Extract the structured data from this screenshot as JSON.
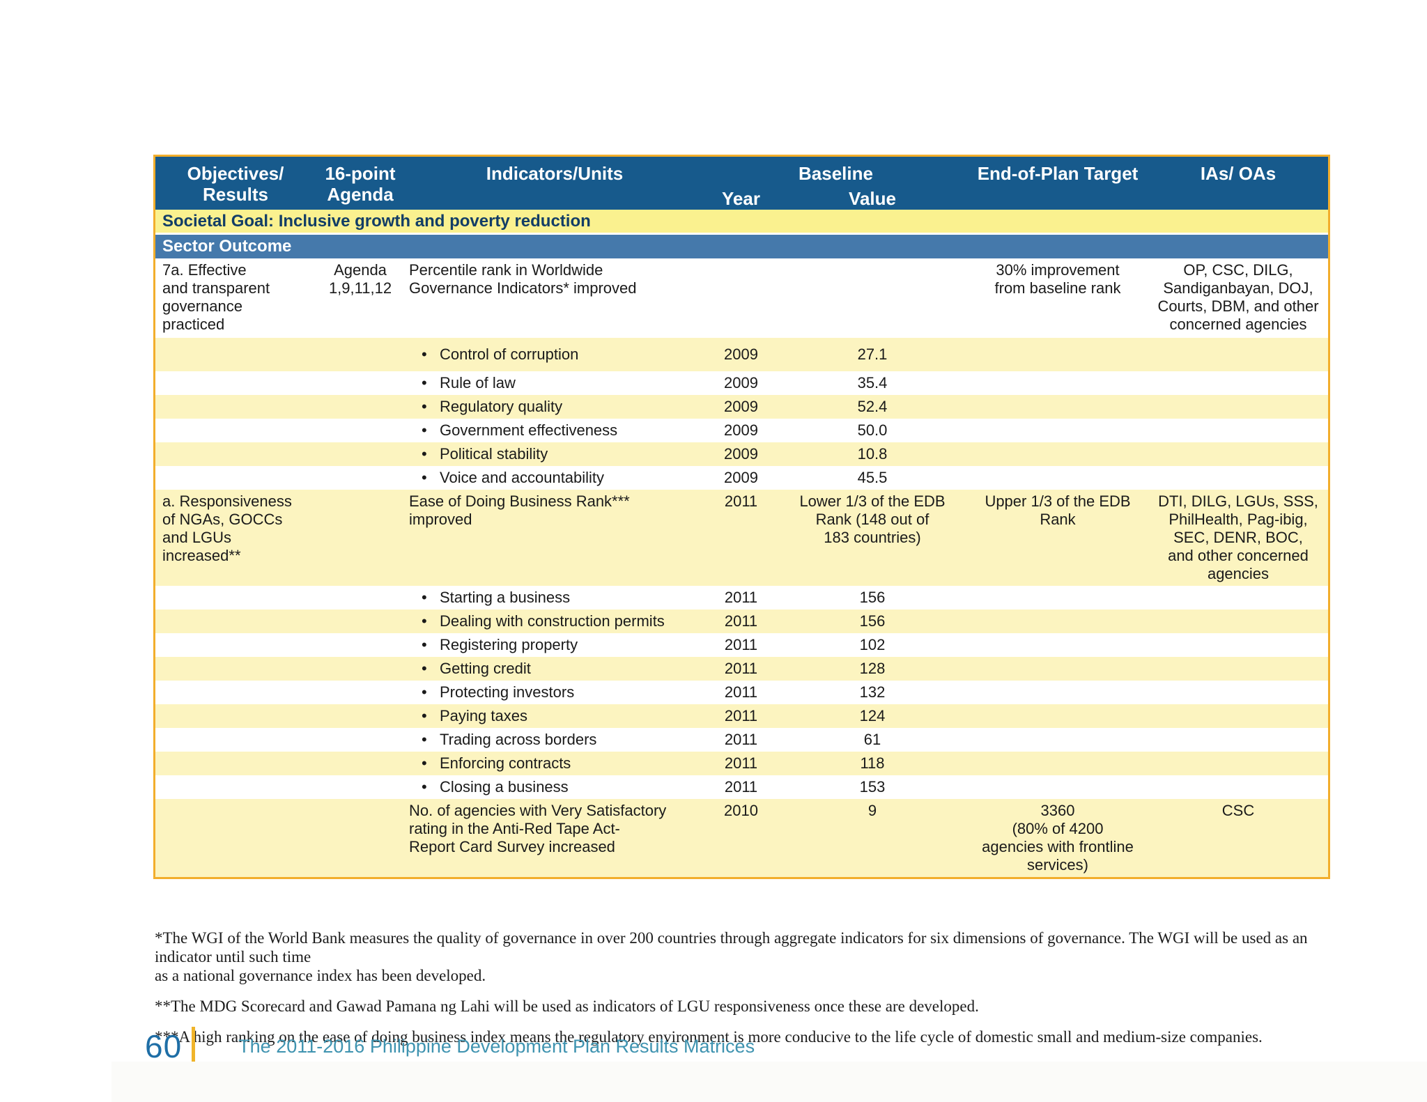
{
  "colors": {
    "header_blue": "#175a8c",
    "societal_band_yellow": "#faf18f",
    "societal_text_navy": "#123d66",
    "sector_band_blue": "#4579ab",
    "row_yellow": "#fcf4c0",
    "table_border_gold": "#f2ae2c",
    "footer_page_number_blue": "#1e6ea6",
    "footer_bar_gold": "#f0b42a",
    "footer_title_blue": "#3f93b0",
    "body_text": "#1a1a1a"
  },
  "table": {
    "headers": {
      "objectives": "Objectives/\nResults",
      "agenda": "16-point\nAgenda",
      "indicators": "Indicators/Units",
      "baseline": "Baseline",
      "year": "Year",
      "value": "Value",
      "target": "End-of-Plan Target",
      "ias": "IAs/ OAs"
    },
    "societal_goal": "Societal Goal: Inclusive growth and poverty reduction",
    "sector_outcome": "Sector Outcome",
    "rows": [
      {
        "obj": "7a. Effective\nand transparent\ngovernance\npracticed",
        "agenda": "Agenda\n1,9,11,12",
        "ind": "Percentile rank in Worldwide\nGovernance Indicators* improved",
        "year": "",
        "val": "",
        "target": "30% improvement\nfrom baseline rank",
        "ias": "OP, CSC, DILG,\nSandiganbayan, DOJ,\nCourts, DBM, and other\nconcerned agencies"
      },
      {
        "obj": "",
        "agenda": "",
        "ind": "Control of corruption",
        "year": "2009",
        "val": "27.1",
        "target": "",
        "ias": ""
      },
      {
        "obj": "",
        "agenda": "",
        "ind": "Rule of law",
        "year": "2009",
        "val": "35.4",
        "target": "",
        "ias": ""
      },
      {
        "obj": "",
        "agenda": "",
        "ind": "Regulatory quality",
        "year": "2009",
        "val": "52.4",
        "target": "",
        "ias": ""
      },
      {
        "obj": "",
        "agenda": "",
        "ind": "Government effectiveness",
        "year": "2009",
        "val": "50.0",
        "target": "",
        "ias": ""
      },
      {
        "obj": "",
        "agenda": "",
        "ind": "Political stability",
        "year": "2009",
        "val": "10.8",
        "target": "",
        "ias": ""
      },
      {
        "obj": "",
        "agenda": "",
        "ind": "Voice and accountability",
        "year": "2009",
        "val": "45.5",
        "target": "",
        "ias": ""
      },
      {
        "obj": "a. Responsiveness\nof NGAs, GOCCs\nand LGUs\nincreased**",
        "agenda": "",
        "ind": "Ease of Doing Business Rank***\nimproved",
        "year": "2011",
        "val": "Lower 1/3 of the EDB\nRank  (148 out of\n183 countries)",
        "target": "Upper 1/3 of the EDB\nRank",
        "ias": "DTI, DILG, LGUs, SSS,\nPhilHealth, Pag-ibig,\nSEC, DENR, BOC,\nand other concerned\nagencies"
      },
      {
        "obj": "",
        "agenda": "",
        "ind": "Starting a business",
        "year": "2011",
        "val": "156",
        "target": "",
        "ias": ""
      },
      {
        "obj": "",
        "agenda": "",
        "ind": "Dealing with construction permits",
        "year": "2011",
        "val": "156",
        "target": "",
        "ias": ""
      },
      {
        "obj": "",
        "agenda": "",
        "ind": "Registering property",
        "year": "2011",
        "val": "102",
        "target": "",
        "ias": ""
      },
      {
        "obj": "",
        "agenda": "",
        "ind": "Getting credit",
        "year": "2011",
        "val": "128",
        "target": "",
        "ias": ""
      },
      {
        "obj": "",
        "agenda": "",
        "ind": "Protecting investors",
        "year": "2011",
        "val": "132",
        "target": "",
        "ias": ""
      },
      {
        "obj": "",
        "agenda": "",
        "ind": "Paying taxes",
        "year": "2011",
        "val": "124",
        "target": "",
        "ias": ""
      },
      {
        "obj": "",
        "agenda": "",
        "ind": "Trading across borders",
        "year": "2011",
        "val": "61",
        "target": "",
        "ias": ""
      },
      {
        "obj": "",
        "agenda": "",
        "ind": "Enforcing contracts",
        "year": "2011",
        "val": "118",
        "target": "",
        "ias": ""
      },
      {
        "obj": "",
        "agenda": "",
        "ind": "Closing a business",
        "year": "2011",
        "val": "153",
        "target": "",
        "ias": ""
      },
      {
        "obj": "",
        "agenda": "",
        "ind": "No. of agencies with Very Satisfactory\nrating in the Anti-Red Tape Act-\nReport Card Survey increased",
        "year": "2010",
        "val": "9",
        "target": "3360\n(80% of 4200\nagencies with frontline\nservices)",
        "ias": "CSC"
      }
    ]
  },
  "footnotes": [
    "*The WGI of the World Bank measures the quality of governance in over 200 countries through aggregate indicators for six dimensions of governance. The WGI will be used as an indicator until such time\nas a national governance index has been developed.",
    "**The MDG Scorecard and Gawad Pamana ng Lahi will be used as indicators of LGU responsiveness once these are developed.",
    "***A high ranking on the ease of doing business index means the regulatory environment is more conducive to the life cycle of domestic small and medium-size companies."
  ],
  "footer": {
    "page_number": "60",
    "title": "The 2011-2016 Philippine Development Plan Results Matrices"
  }
}
